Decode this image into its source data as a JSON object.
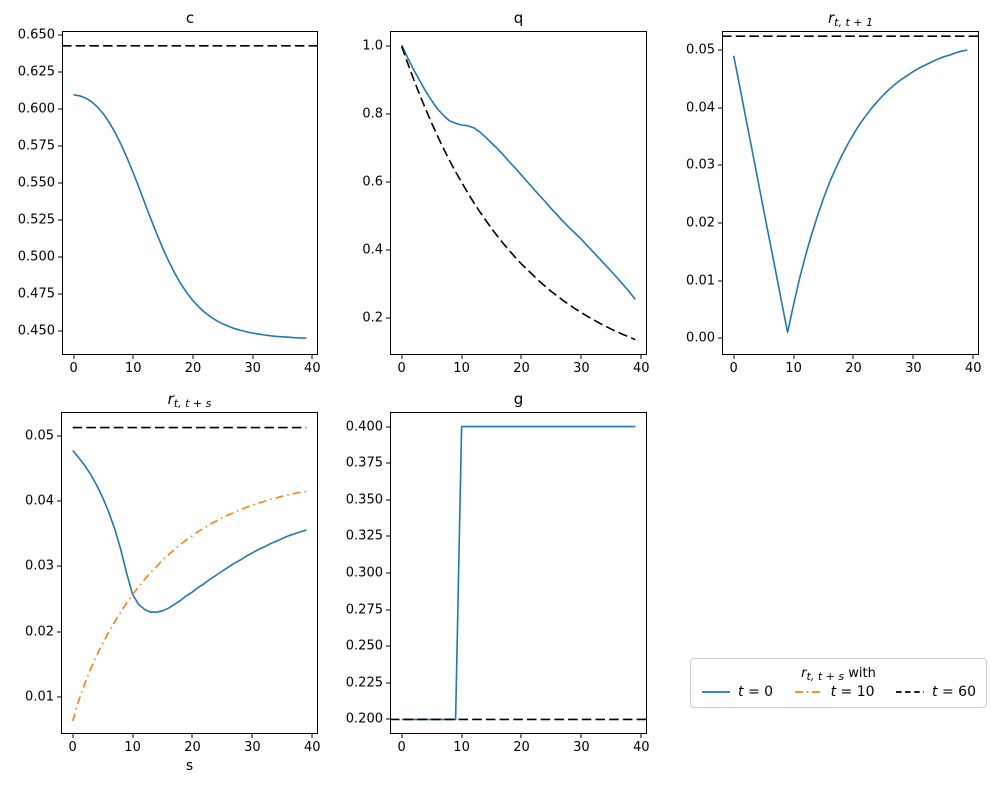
{
  "colors": {
    "blue": "#1f77b4",
    "orange": "#ff7f0e",
    "black": "#000000"
  },
  "legend": {
    "title_main": "r",
    "title_sub": "t, t + s",
    "title_suffix": " with",
    "entries": [
      {
        "var": "t",
        "rest": " = 0",
        "color": "#1f77b4",
        "style": "solid"
      },
      {
        "var": "t",
        "rest": " = 10",
        "color": "#ff7f0e",
        "style": "dashdot"
      },
      {
        "var": "t",
        "rest": " = 60",
        "color": "#000000",
        "style": "dashed"
      }
    ]
  },
  "chart_data": [
    {
      "id": "c",
      "type": "line",
      "title_main": "c",
      "title_sub": "",
      "xlabel": "",
      "xlim": [
        -1.95,
        40.95
      ],
      "ylim": [
        0.4336,
        0.6526
      ],
      "xtick_values": [
        0,
        10,
        20,
        30,
        40
      ],
      "xtick_labels": [
        "0",
        "10",
        "20",
        "30",
        "40"
      ],
      "ytick_values": [
        0.45,
        0.475,
        0.5,
        0.525,
        0.55,
        0.575,
        0.6,
        0.625,
        0.65
      ],
      "ytick_labels": [
        "0.450",
        "0.475",
        "0.500",
        "0.525",
        "0.550",
        "0.575",
        "0.600",
        "0.625",
        "0.650"
      ],
      "series": [
        {
          "name": "c-path",
          "color": "#1f77b4",
          "style": "solid",
          "x": [
            0,
            1,
            2,
            3,
            4,
            5,
            6,
            7,
            8,
            9,
            10,
            11,
            12,
            13,
            14,
            15,
            16,
            17,
            18,
            19,
            20,
            21,
            22,
            23,
            24,
            25,
            26,
            27,
            28,
            29,
            30,
            31,
            32,
            33,
            34,
            35,
            36,
            37,
            38,
            39
          ],
          "y": [
            0.6095,
            0.6088,
            0.6073,
            0.6048,
            0.6012,
            0.5965,
            0.5906,
            0.5836,
            0.5755,
            0.5664,
            0.5566,
            0.5462,
            0.5356,
            0.525,
            0.5148,
            0.5052,
            0.4964,
            0.4885,
            0.4815,
            0.4755,
            0.4703,
            0.466,
            0.4623,
            0.4593,
            0.4567,
            0.4546,
            0.4529,
            0.4514,
            0.4502,
            0.4492,
            0.4484,
            0.4477,
            0.4471,
            0.4466,
            0.4462,
            0.4459,
            0.4456,
            0.4453,
            0.4451,
            0.445
          ]
        },
        {
          "name": "c-steady-state",
          "color": "#000000",
          "style": "dashed",
          "axhline": true,
          "y": [
            0.6426
          ]
        }
      ]
    },
    {
      "id": "q",
      "type": "line",
      "title_main": "q",
      "title_sub": "",
      "xlabel": "",
      "xlim": [
        -1.95,
        40.95
      ],
      "ylim": [
        0.09,
        1.045
      ],
      "xtick_values": [
        0,
        10,
        20,
        30,
        40
      ],
      "xtick_labels": [
        "0",
        "10",
        "20",
        "30",
        "40"
      ],
      "ytick_values": [
        0.2,
        0.4,
        0.6,
        0.8,
        1.0
      ],
      "ytick_labels": [
        "0.2",
        "0.4",
        "0.6",
        "0.8",
        "1.0"
      ],
      "series": [
        {
          "name": "q-path",
          "color": "#1f77b4",
          "style": "solid",
          "x": [
            0,
            1,
            2,
            3,
            4,
            5,
            6,
            7,
            8,
            9,
            10,
            11,
            12,
            13,
            14,
            15,
            16,
            17,
            18,
            19,
            20,
            21,
            22,
            23,
            24,
            25,
            26,
            27,
            28,
            29,
            30,
            31,
            32,
            33,
            34,
            35,
            36,
            37,
            38,
            39
          ],
          "y": [
            1.003,
            0.966,
            0.931,
            0.899,
            0.868,
            0.84,
            0.815,
            0.796,
            0.78,
            0.773,
            0.768,
            0.766,
            0.76,
            0.748,
            0.732,
            0.715,
            0.698,
            0.679,
            0.659,
            0.64,
            0.62,
            0.6,
            0.58,
            0.56,
            0.541,
            0.521,
            0.502,
            0.483,
            0.465,
            0.448,
            0.431,
            0.412,
            0.393,
            0.374,
            0.355,
            0.336,
            0.317,
            0.297,
            0.276,
            0.254
          ]
        },
        {
          "name": "q-benchmark",
          "color": "#000000",
          "style": "dashed",
          "x": [
            0,
            1,
            2,
            3,
            4,
            5,
            6,
            7,
            8,
            9,
            10,
            11,
            12,
            13,
            14,
            15,
            16,
            17,
            18,
            19,
            20,
            21,
            22,
            23,
            24,
            25,
            26,
            27,
            28,
            29,
            30,
            31,
            32,
            33,
            34,
            35,
            36,
            37,
            38,
            39
          ],
          "y": [
            1.0,
            0.95,
            0.902,
            0.857,
            0.815,
            0.774,
            0.735,
            0.698,
            0.663,
            0.63,
            0.599,
            0.569,
            0.54,
            0.513,
            0.488,
            0.463,
            0.44,
            0.418,
            0.397,
            0.377,
            0.358,
            0.341,
            0.324,
            0.307,
            0.292,
            0.277,
            0.264,
            0.25,
            0.238,
            0.226,
            0.215,
            0.204,
            0.194,
            0.184,
            0.175,
            0.166,
            0.158,
            0.15,
            0.143,
            0.135
          ]
        }
      ]
    },
    {
      "id": "r-t-t1",
      "type": "line",
      "title_main": "r",
      "title_sub": "t, t + 1",
      "xlabel": "",
      "xlim": [
        -1.95,
        40.95
      ],
      "ylim": [
        -0.0029,
        0.0533
      ],
      "xtick_values": [
        0,
        10,
        20,
        30,
        40
      ],
      "xtick_labels": [
        "0",
        "10",
        "20",
        "30",
        "40"
      ],
      "ytick_values": [
        0.0,
        0.01,
        0.02,
        0.03,
        0.04,
        0.05
      ],
      "ytick_labels": [
        "0.00",
        "0.01",
        "0.02",
        "0.03",
        "0.04",
        "0.05"
      ],
      "series": [
        {
          "name": "r-one-period-path",
          "color": "#1f77b4",
          "style": "solid",
          "x": [
            0,
            1,
            2,
            3,
            4,
            5,
            6,
            7,
            8,
            9,
            10,
            11,
            12,
            13,
            14,
            15,
            16,
            17,
            18,
            19,
            20,
            21,
            22,
            23,
            24,
            25,
            26,
            27,
            28,
            29,
            30,
            31,
            32,
            33,
            34,
            35,
            36,
            37,
            38,
            39
          ],
          "y": [
            0.049,
            0.0437,
            0.0383,
            0.033,
            0.0277,
            0.0223,
            0.017,
            0.0117,
            0.0063,
            0.001,
            0.0059,
            0.0104,
            0.0144,
            0.018,
            0.0213,
            0.0243,
            0.027,
            0.0294,
            0.0316,
            0.0336,
            0.0354,
            0.0371,
            0.0385,
            0.0399,
            0.0411,
            0.0422,
            0.0432,
            0.0441,
            0.0449,
            0.0456,
            0.0463,
            0.0469,
            0.0474,
            0.0479,
            0.0484,
            0.0488,
            0.0491,
            0.0495,
            0.0498,
            0.05
          ]
        },
        {
          "name": "r-steady-state",
          "color": "#000000",
          "style": "dashed",
          "axhline": true,
          "y": [
            0.0524
          ]
        }
      ]
    },
    {
      "id": "r-t-ts",
      "type": "line",
      "title_main": "r",
      "title_sub": "t, t + s",
      "xlabel": "s",
      "xlim": [
        -1.95,
        40.95
      ],
      "ylim": [
        0.0043,
        0.0537
      ],
      "xtick_values": [
        0,
        10,
        20,
        30,
        40
      ],
      "xtick_labels": [
        "0",
        "10",
        "20",
        "30",
        "40"
      ],
      "ytick_values": [
        0.01,
        0.02,
        0.03,
        0.04,
        0.05
      ],
      "ytick_labels": [
        "0.01",
        "0.02",
        "0.03",
        "0.04",
        "0.05"
      ],
      "series": [
        {
          "name": "r-term-structure-t0",
          "color": "#1f77b4",
          "style": "solid",
          "x": [
            0,
            1,
            2,
            3,
            4,
            5,
            6,
            7,
            8,
            9,
            10,
            11,
            12,
            13,
            14,
            15,
            16,
            17,
            18,
            19,
            20,
            21,
            22,
            23,
            24,
            25,
            26,
            27,
            28,
            29,
            30,
            31,
            32,
            33,
            34,
            35,
            36,
            37,
            38,
            39
          ],
          "y": [
            0.0478,
            0.0467,
            0.0455,
            0.0441,
            0.0425,
            0.0406,
            0.0384,
            0.0358,
            0.0327,
            0.029,
            0.0257,
            0.0242,
            0.0234,
            0.023,
            0.023,
            0.0232,
            0.0236,
            0.0242,
            0.0248,
            0.0255,
            0.0261,
            0.0268,
            0.0274,
            0.0281,
            0.0287,
            0.0293,
            0.0299,
            0.0305,
            0.031,
            0.0316,
            0.0321,
            0.0326,
            0.033,
            0.0335,
            0.0339,
            0.0343,
            0.0347,
            0.035,
            0.0353,
            0.0356
          ]
        },
        {
          "name": "r-term-structure-t10",
          "color": "#ff7f0e",
          "style": "dashdot",
          "x": [
            0,
            1,
            2,
            3,
            4,
            5,
            6,
            7,
            8,
            9,
            10,
            11,
            12,
            13,
            14,
            15,
            16,
            17,
            18,
            19,
            20,
            21,
            22,
            23,
            24,
            25,
            26,
            27,
            28,
            29,
            30,
            31,
            32,
            33,
            34,
            35,
            36,
            37,
            38,
            39
          ],
          "y": [
            0.0063,
            0.0094,
            0.012,
            0.0143,
            0.0163,
            0.0182,
            0.0199,
            0.0215,
            0.023,
            0.0244,
            0.0257,
            0.0269,
            0.028,
            0.0291,
            0.03,
            0.031,
            0.0318,
            0.0326,
            0.0334,
            0.0341,
            0.0347,
            0.0354,
            0.0359,
            0.0365,
            0.037,
            0.0375,
            0.0379,
            0.0383,
            0.0387,
            0.0391,
            0.0394,
            0.0397,
            0.04,
            0.0403,
            0.0405,
            0.0408,
            0.041,
            0.0412,
            0.0414,
            0.0415
          ]
        },
        {
          "name": "r-term-structure-t60",
          "color": "#000000",
          "style": "dashed",
          "x": [
            0,
            39
          ],
          "y": [
            0.0513,
            0.0513
          ]
        }
      ]
    },
    {
      "id": "g",
      "type": "line",
      "title_main": "g",
      "title_sub": "",
      "xlabel": "",
      "xlim": [
        -1.95,
        40.95
      ],
      "ylim": [
        0.19,
        0.41
      ],
      "xtick_values": [
        0,
        10,
        20,
        30,
        40
      ],
      "xtick_labels": [
        "0",
        "10",
        "20",
        "30",
        "40"
      ],
      "ytick_values": [
        0.2,
        0.225,
        0.25,
        0.275,
        0.3,
        0.325,
        0.35,
        0.375,
        0.4
      ],
      "ytick_labels": [
        "0.200",
        "0.225",
        "0.250",
        "0.275",
        "0.300",
        "0.325",
        "0.350",
        "0.375",
        "0.400"
      ],
      "series": [
        {
          "name": "g-path",
          "color": "#1f77b4",
          "style": "solid",
          "x": [
            0,
            9,
            10,
            39
          ],
          "y": [
            0.2,
            0.2,
            0.4,
            0.4
          ]
        },
        {
          "name": "g-initial-level",
          "color": "#000000",
          "style": "dashed",
          "axhline": true,
          "y": [
            0.2
          ]
        }
      ]
    }
  ]
}
